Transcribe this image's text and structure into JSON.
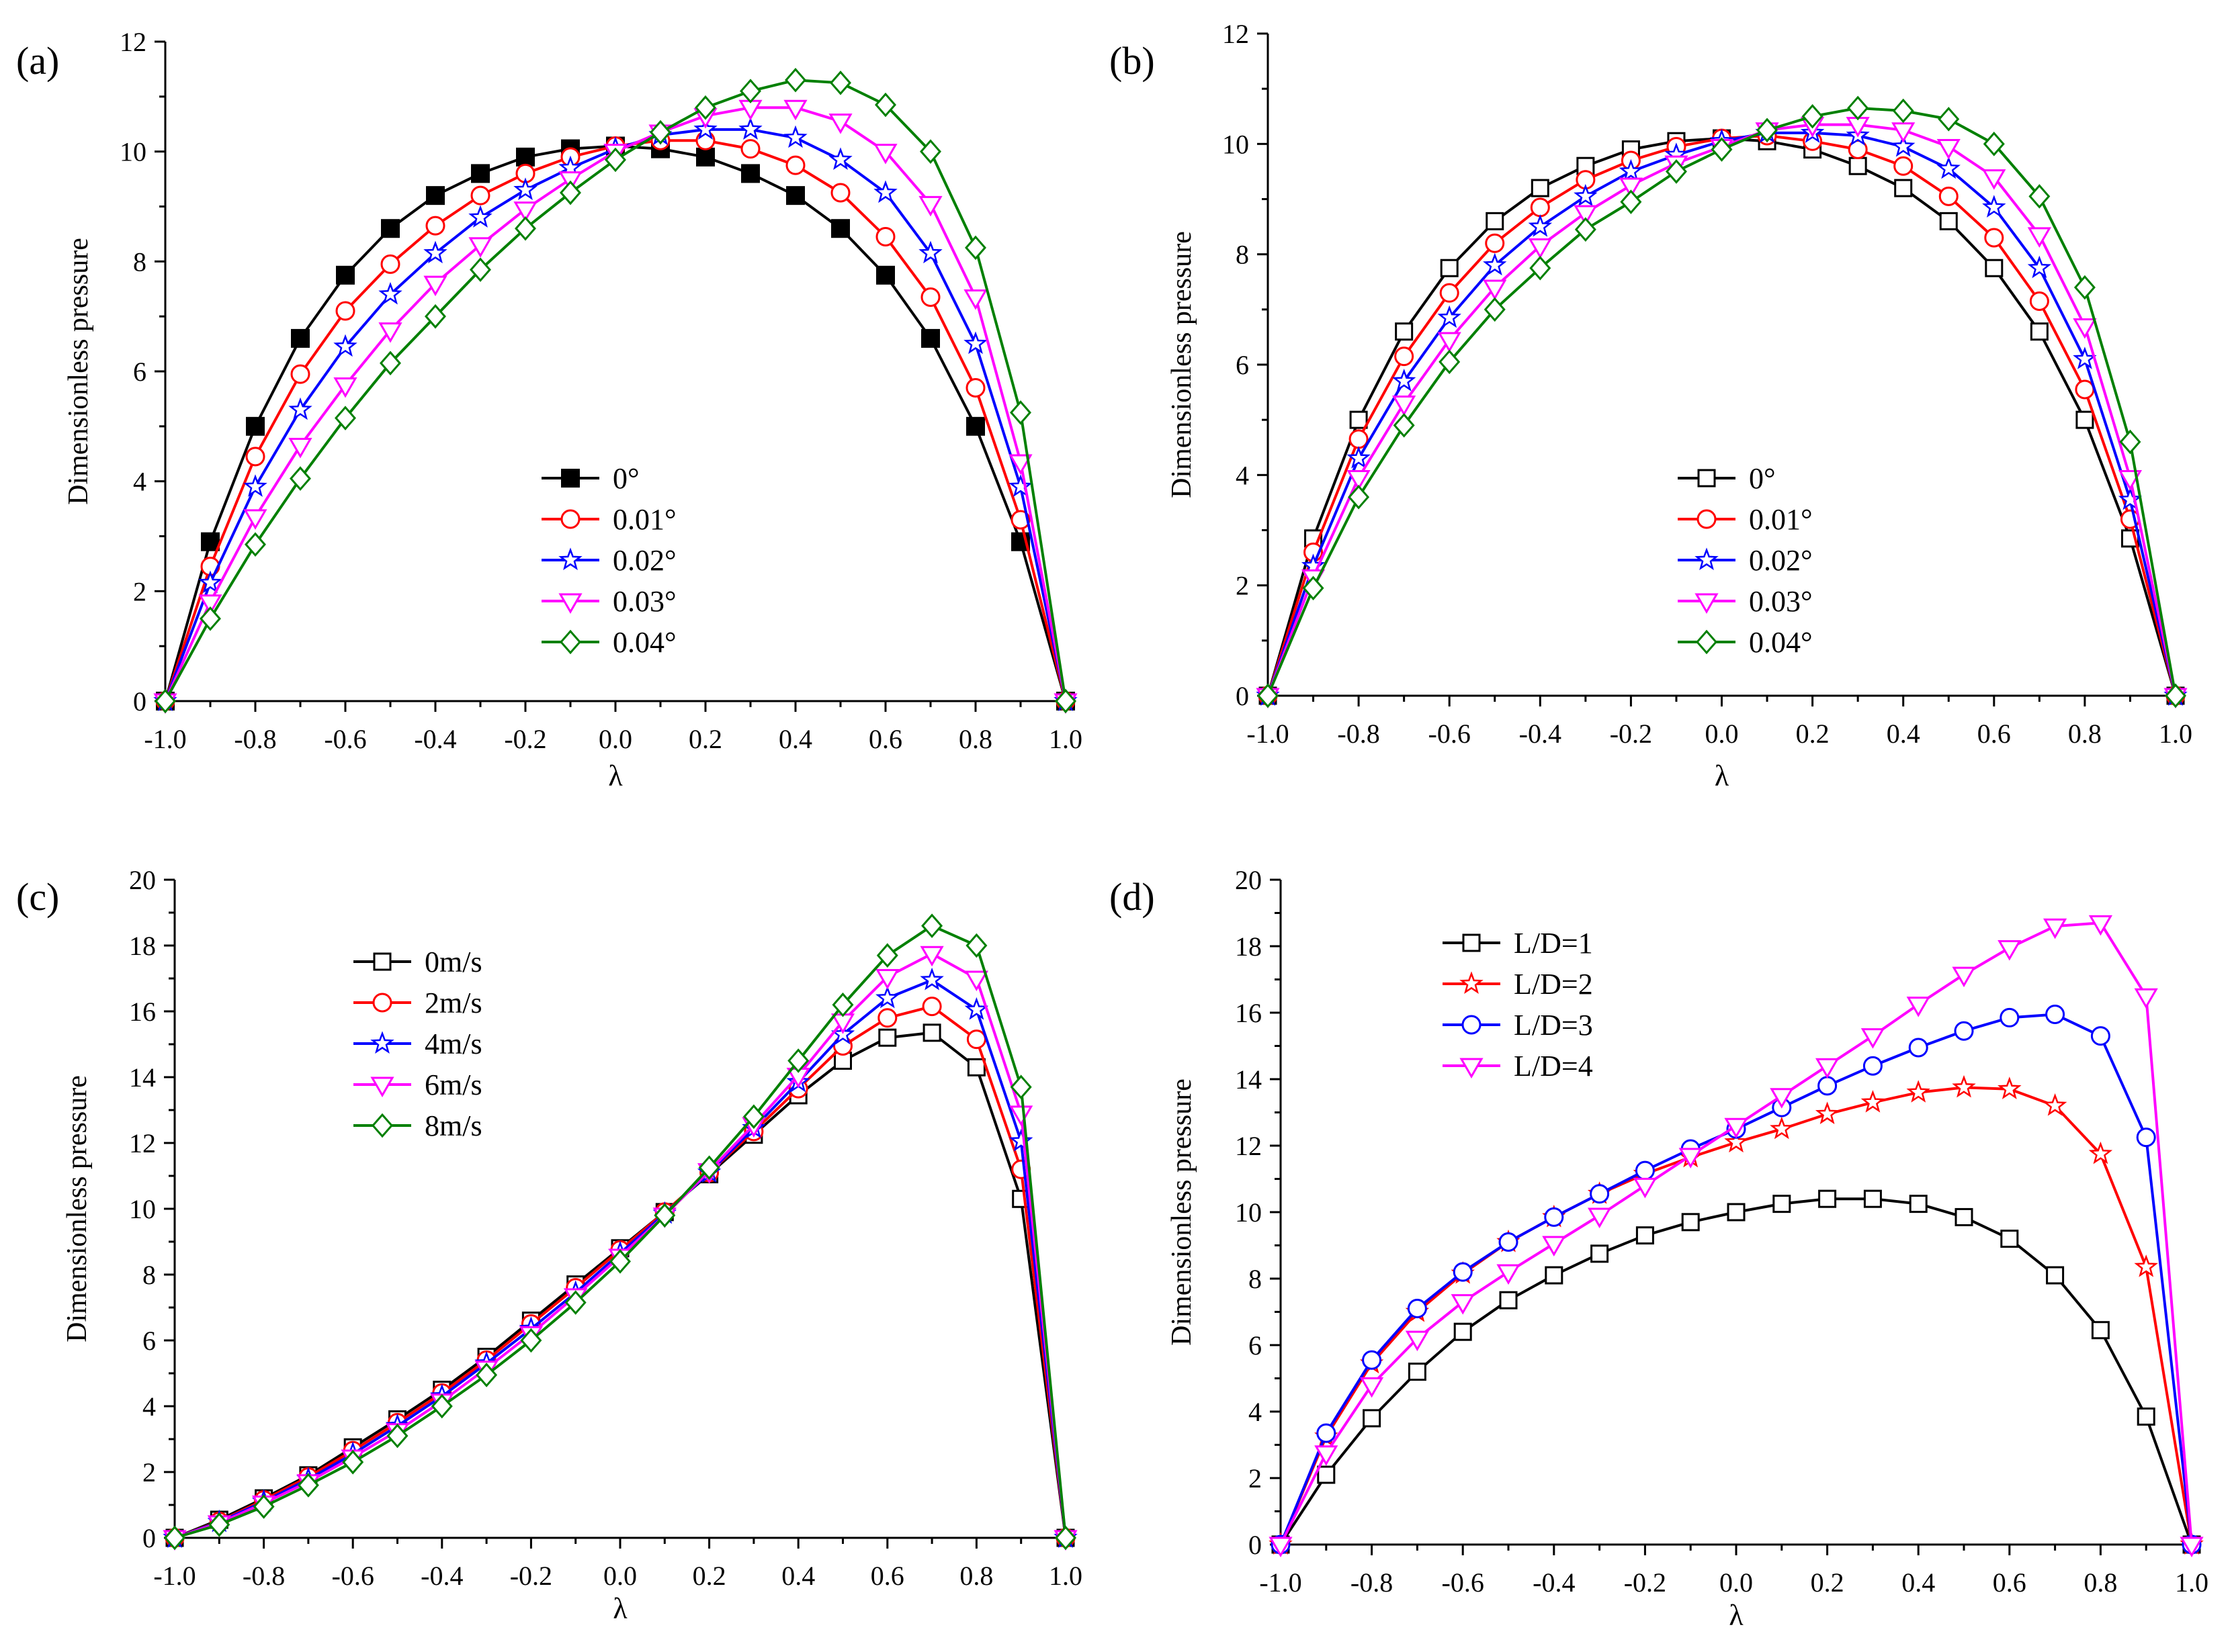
{
  "chart_data": [
    {
      "panel_label": "(a)",
      "type": "line",
      "xlabel": "λ",
      "ylabel": "Dimensionless pressure",
      "xlim": [
        -1.0,
        1.0
      ],
      "ylim": [
        0,
        12
      ],
      "xticks": [
        "-1.0",
        "-0.8",
        "-0.6",
        "-0.4",
        "-0.2",
        "0.0",
        "0.2",
        "0.4",
        "0.6",
        "0.8",
        "1.0"
      ],
      "yticks": [
        "0",
        "2",
        "4",
        "6",
        "8",
        "10",
        "12"
      ],
      "legend_position": "center",
      "x": [
        -1.0,
        -0.9,
        -0.8,
        -0.7,
        -0.6,
        -0.5,
        -0.4,
        -0.3,
        -0.2,
        -0.1,
        0.0,
        0.1,
        0.2,
        0.3,
        0.4,
        0.5,
        0.6,
        0.7,
        0.8,
        0.9,
        1.0
      ],
      "series": [
        {
          "name": "0°",
          "color": "#000000",
          "marker": "square-filled",
          "values": [
            0,
            2.9,
            5.0,
            6.6,
            7.75,
            8.6,
            9.2,
            9.6,
            9.9,
            10.05,
            10.1,
            10.05,
            9.9,
            9.6,
            9.2,
            8.6,
            7.75,
            6.6,
            5.0,
            2.9,
            0
          ]
        },
        {
          "name": "0.01°",
          "color": "#ff0000",
          "marker": "circle",
          "values": [
            0,
            2.45,
            4.45,
            5.95,
            7.1,
            7.95,
            8.65,
            9.2,
            9.6,
            9.9,
            10.1,
            10.2,
            10.2,
            10.05,
            9.75,
            9.25,
            8.45,
            7.35,
            5.7,
            3.3,
            0
          ]
        },
        {
          "name": "0.02°",
          "color": "#0000ff",
          "marker": "star",
          "values": [
            0,
            2.15,
            3.9,
            5.3,
            6.45,
            7.4,
            8.15,
            8.8,
            9.3,
            9.7,
            10.05,
            10.3,
            10.4,
            10.4,
            10.25,
            9.85,
            9.25,
            8.15,
            6.5,
            3.9,
            0
          ]
        },
        {
          "name": "0.03°",
          "color": "#ff00ff",
          "marker": "triangle-down",
          "values": [
            0,
            1.8,
            3.35,
            4.65,
            5.75,
            6.75,
            7.6,
            8.3,
            8.95,
            9.5,
            10.0,
            10.35,
            10.65,
            10.8,
            10.8,
            10.55,
            10.0,
            9.05,
            7.35,
            4.35,
            0
          ]
        },
        {
          "name": "0.04°",
          "color": "#008000",
          "marker": "diamond",
          "values": [
            0,
            1.5,
            2.85,
            4.05,
            5.15,
            6.15,
            7.0,
            7.85,
            8.6,
            9.25,
            9.85,
            10.35,
            10.8,
            11.1,
            11.3,
            11.25,
            10.85,
            10.0,
            8.25,
            5.25,
            0
          ]
        }
      ]
    },
    {
      "panel_label": "(b)",
      "type": "line",
      "xlabel": "λ",
      "ylabel": "Dimensionless pressure",
      "xlim": [
        -1.0,
        1.0
      ],
      "ylim": [
        0,
        12
      ],
      "xticks": [
        "-1.0",
        "-0.8",
        "-0.6",
        "-0.4",
        "-0.2",
        "0.0",
        "0.2",
        "0.4",
        "0.6",
        "0.8",
        "1.0"
      ],
      "yticks": [
        "0",
        "2",
        "4",
        "6",
        "8",
        "10",
        "12"
      ],
      "legend_position": "center",
      "x": [
        -1.0,
        -0.9,
        -0.8,
        -0.7,
        -0.6,
        -0.5,
        -0.4,
        -0.3,
        -0.2,
        -0.1,
        0.0,
        0.1,
        0.2,
        0.3,
        0.4,
        0.5,
        0.6,
        0.7,
        0.8,
        0.9,
        1.0
      ],
      "series": [
        {
          "name": "0°",
          "color": "#000000",
          "marker": "square",
          "values": [
            0,
            2.85,
            5.0,
            6.6,
            7.75,
            8.6,
            9.2,
            9.6,
            9.9,
            10.05,
            10.1,
            10.05,
            9.9,
            9.6,
            9.2,
            8.6,
            7.75,
            6.6,
            5.0,
            2.85,
            0
          ]
        },
        {
          "name": "0.01°",
          "color": "#ff0000",
          "marker": "circle",
          "values": [
            0,
            2.6,
            4.65,
            6.15,
            7.3,
            8.2,
            8.85,
            9.35,
            9.7,
            9.95,
            10.1,
            10.15,
            10.05,
            9.9,
            9.6,
            9.05,
            8.3,
            7.15,
            5.55,
            3.2,
            0
          ]
        },
        {
          "name": "0.02°",
          "color": "#0000ff",
          "marker": "star",
          "values": [
            0,
            2.35,
            4.3,
            5.7,
            6.85,
            7.8,
            8.5,
            9.05,
            9.5,
            9.8,
            10.05,
            10.2,
            10.2,
            10.15,
            9.95,
            9.55,
            8.85,
            7.75,
            6.1,
            3.55,
            0
          ]
        },
        {
          "name": "0.03°",
          "color": "#ff00ff",
          "marker": "triangle-down",
          "values": [
            0,
            2.15,
            3.95,
            5.3,
            6.45,
            7.4,
            8.15,
            8.75,
            9.25,
            9.65,
            9.95,
            10.25,
            10.35,
            10.35,
            10.25,
            9.95,
            9.4,
            8.35,
            6.7,
            3.95,
            0
          ]
        },
        {
          "name": "0.04°",
          "color": "#008000",
          "marker": "diamond",
          "values": [
            0,
            1.95,
            3.6,
            4.9,
            6.05,
            7.0,
            7.75,
            8.45,
            8.95,
            9.5,
            9.9,
            10.25,
            10.5,
            10.65,
            10.6,
            10.45,
            10.0,
            9.05,
            7.4,
            4.6,
            0
          ]
        }
      ]
    },
    {
      "panel_label": "(c)",
      "type": "line",
      "xlabel": "λ",
      "ylabel": "Dimensionless pressure",
      "xlim": [
        -1.0,
        1.0
      ],
      "ylim": [
        0,
        20
      ],
      "xticks": [
        "-1.0",
        "-0.8",
        "-0.6",
        "-0.4",
        "-0.2",
        "0.0",
        "0.2",
        "0.4",
        "0.6",
        "0.8",
        "1.0"
      ],
      "yticks": [
        "0",
        "2",
        "4",
        "6",
        "8",
        "10",
        "12",
        "14",
        "16",
        "18",
        "20"
      ],
      "legend_position": "top-left",
      "x": [
        -1.0,
        -0.9,
        -0.8,
        -0.7,
        -0.6,
        -0.5,
        -0.4,
        -0.3,
        -0.2,
        -0.1,
        0.0,
        0.1,
        0.2,
        0.3,
        0.4,
        0.5,
        0.6,
        0.7,
        0.8,
        0.9,
        1.0
      ],
      "series": [
        {
          "name": "0m/s",
          "color": "#000000",
          "marker": "square",
          "values": [
            0,
            0.55,
            1.2,
            1.9,
            2.75,
            3.6,
            4.5,
            5.5,
            6.6,
            7.7,
            8.8,
            9.9,
            11.05,
            12.25,
            13.45,
            14.5,
            15.2,
            15.35,
            14.3,
            10.3,
            0
          ]
        },
        {
          "name": "2m/s",
          "color": "#ff0000",
          "marker": "circle",
          "values": [
            0,
            0.5,
            1.15,
            1.85,
            2.65,
            3.5,
            4.4,
            5.4,
            6.5,
            7.6,
            8.75,
            9.9,
            11.1,
            12.35,
            13.65,
            14.95,
            15.8,
            16.15,
            15.15,
            11.2,
            0
          ]
        },
        {
          "name": "4m/s",
          "color": "#0000ff",
          "marker": "star",
          "values": [
            0,
            0.48,
            1.1,
            1.78,
            2.55,
            3.4,
            4.3,
            5.3,
            6.35,
            7.45,
            8.65,
            9.85,
            11.1,
            12.45,
            13.85,
            15.3,
            16.4,
            16.95,
            16.05,
            12.05,
            0
          ]
        },
        {
          "name": "6m/s",
          "color": "#ff00ff",
          "marker": "triangle-down",
          "values": [
            0,
            0.45,
            1.05,
            1.7,
            2.45,
            3.25,
            4.15,
            5.15,
            6.2,
            7.35,
            8.55,
            9.8,
            11.15,
            12.55,
            14.05,
            15.7,
            17.05,
            17.75,
            17.0,
            12.9,
            0
          ]
        },
        {
          "name": "8m/s",
          "color": "#008000",
          "marker": "diamond",
          "values": [
            0,
            0.4,
            0.95,
            1.6,
            2.3,
            3.1,
            4.0,
            4.95,
            6.0,
            7.15,
            8.4,
            9.8,
            11.25,
            12.8,
            14.5,
            16.2,
            17.7,
            18.6,
            18.0,
            13.7,
            0
          ]
        }
      ]
    },
    {
      "panel_label": "(d)",
      "type": "line",
      "xlabel": "λ",
      "ylabel": "Dimensionless pressure",
      "xlim": [
        -1.0,
        1.0
      ],
      "ylim": [
        0,
        20
      ],
      "xticks": [
        "-1.0",
        "-0.8",
        "-0.6",
        "-0.4",
        "-0.2",
        "0.0",
        "0.2",
        "0.4",
        "0.6",
        "0.8",
        "1.0"
      ],
      "yticks": [
        "0",
        "2",
        "4",
        "6",
        "8",
        "10",
        "12",
        "14",
        "16",
        "18",
        "20"
      ],
      "legend_position": "top-left",
      "x": [
        -1.0,
        -0.9,
        -0.8,
        -0.7,
        -0.6,
        -0.5,
        -0.4,
        -0.3,
        -0.2,
        -0.1,
        0.0,
        0.1,
        0.2,
        0.3,
        0.4,
        0.5,
        0.6,
        0.7,
        0.8,
        0.9,
        1.0
      ],
      "series": [
        {
          "name": "L/D=1",
          "color": "#000000",
          "marker": "square",
          "values": [
            0,
            2.1,
            3.8,
            5.2,
            6.4,
            7.35,
            8.1,
            8.75,
            9.3,
            9.7,
            10.0,
            10.25,
            10.4,
            10.4,
            10.25,
            9.85,
            9.2,
            8.1,
            6.45,
            3.85,
            0
          ]
        },
        {
          "name": "L/D=2",
          "color": "#ff0000",
          "marker": "star",
          "values": [
            0,
            3.25,
            5.45,
            7.0,
            8.15,
            9.1,
            9.85,
            10.55,
            11.15,
            11.65,
            12.1,
            12.5,
            12.95,
            13.3,
            13.6,
            13.75,
            13.7,
            13.2,
            11.75,
            8.35,
            0
          ]
        },
        {
          "name": "L/D=3",
          "color": "#0000ff",
          "marker": "circle",
          "values": [
            0,
            3.35,
            5.55,
            7.1,
            8.2,
            9.1,
            9.85,
            10.55,
            11.25,
            11.9,
            12.5,
            13.15,
            13.8,
            14.4,
            14.95,
            15.45,
            15.85,
            15.95,
            15.3,
            12.25,
            0
          ]
        },
        {
          "name": "L/D=4",
          "color": "#ff00ff",
          "marker": "triangle-down",
          "values": [
            0,
            2.75,
            4.8,
            6.2,
            7.3,
            8.2,
            9.05,
            9.9,
            10.8,
            11.7,
            12.6,
            13.5,
            14.4,
            15.3,
            16.25,
            17.15,
            17.95,
            18.6,
            18.7,
            16.5,
            0
          ]
        }
      ]
    }
  ]
}
